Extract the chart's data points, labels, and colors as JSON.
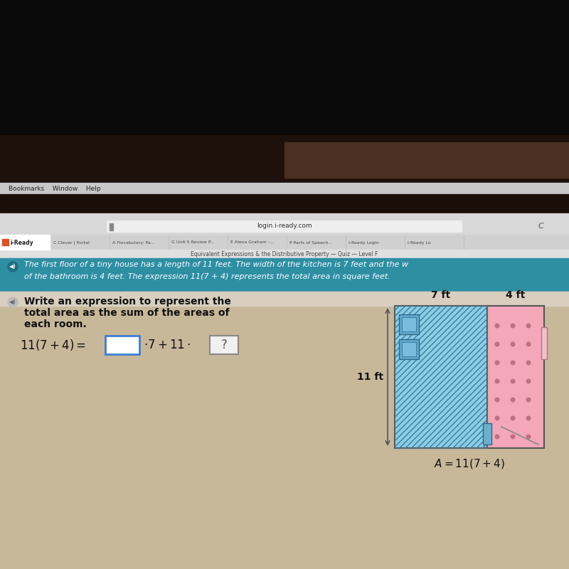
{
  "bg_top": "#000000",
  "bg_browser_bar": "#c8c8c8",
  "bg_tab_bar": "#d0d0d0",
  "bg_content": "#c8b89a",
  "tab_title_center": "Equivalent Expressions & the Distributive Property — Quiz — Level F",
  "tab_url": "login.i-ready.com",
  "problem_text_line1": "The first floor of a tiny house has a length of 11 feet. The width of the kitchen is 7 feet and the w",
  "problem_text_line2": "of the bathroom is 4 feet. The expression 11(7 + 4) represents the total area in square feet.",
  "question_label": "Write an expression to represent the",
  "question_label2": "total area as the sum of the areas of",
  "question_label3": "each room.",
  "diagram_label_top_left": "7 ft",
  "diagram_label_top_right": "4 ft",
  "diagram_label_left": "11 ft",
  "diagram_area_label": "A = 11(7 + 4)",
  "kitchen_color": "#87ceeb",
  "bathroom_color": "#f4a7b9",
  "hatch_color": "#5599aa",
  "banner_color": "#2e8fa3",
  "content_bg": "#c8b89a"
}
